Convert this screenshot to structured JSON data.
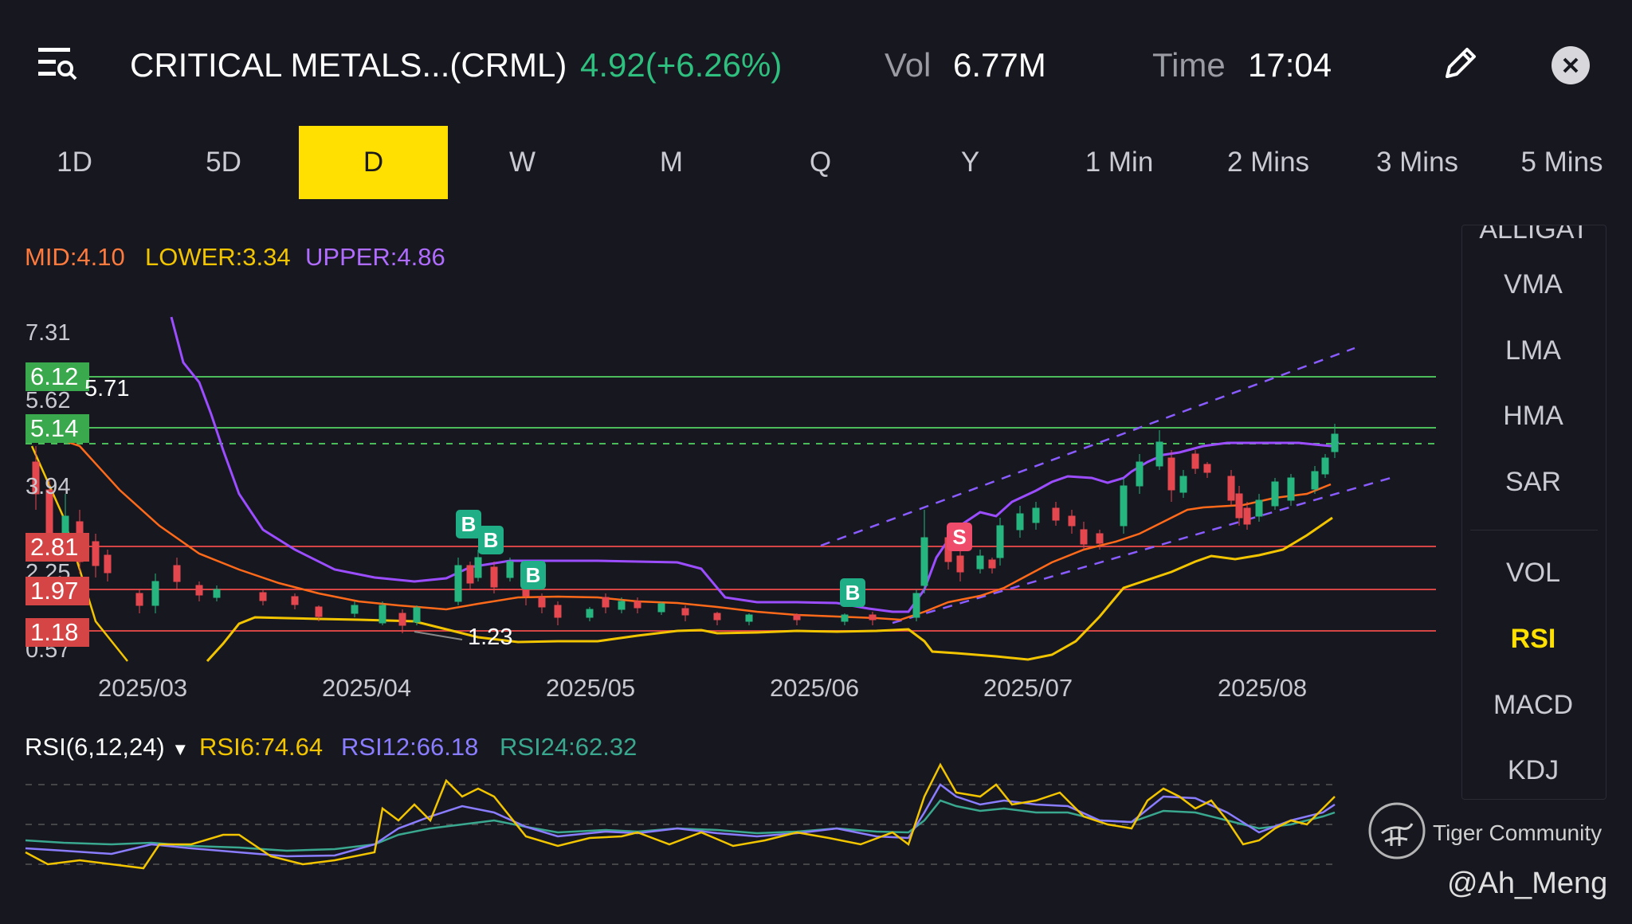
{
  "header": {
    "title": "CRITICAL METALS...(CRML)",
    "price_change": "4.92(+6.26%)",
    "vol_label": "Vol",
    "vol_value": "6.77M",
    "time_label": "Time",
    "time_value": "17:04"
  },
  "tabs": [
    "1D",
    "5D",
    "D",
    "W",
    "M",
    "Q",
    "Y",
    "1 Min",
    "2 Mins",
    "3 Mins",
    "5 Mins"
  ],
  "active_tab": "D",
  "bollinger": {
    "mid": "MID:4.10",
    "lower": "LOWER:3.34",
    "upper": "UPPER:4.86"
  },
  "price_axis": [
    "7.31",
    "5.62",
    "3.94",
    "2.25",
    "0.57"
  ],
  "price_tags": {
    "green_1": "6.12",
    "green_2": "5.14",
    "red_1": "2.81",
    "red_2": "1.97",
    "red_3": "1.18"
  },
  "annotations": {
    "high_marker": "5.71",
    "low_marker": "1.23"
  },
  "dates": [
    "2025/03",
    "2025/04",
    "2025/05",
    "2025/06",
    "2025/07",
    "2025/08"
  ],
  "signals": {
    "buy": "B",
    "sell": "S"
  },
  "rsi": {
    "label": "RSI(6,12,24)",
    "rsi6": "RSI6:74.64",
    "rsi12": "RSI12:66.18",
    "rsi24": "RSI24:62.32"
  },
  "side_panel": {
    "partial": "ALLIGAT",
    "items": [
      "VMA",
      "LMA",
      "HMA",
      "SAR",
      "VOL",
      "RSI",
      "MACD",
      "KDJ"
    ],
    "active": "RSI"
  },
  "watermark": {
    "community": "Tiger Community",
    "user": "@Ah_Meng"
  },
  "colors": {
    "background": "#16171f",
    "up": "#26b57e",
    "down": "#e5474f",
    "upper_band": "#9b4dff",
    "mid_band": "#ff7a1a",
    "lower_band": "#f2c500",
    "active_tab": "#ffe000"
  },
  "icons": [
    "list-search-icon",
    "edit-pencil-icon",
    "close-icon",
    "chevron-down-icon"
  ]
}
